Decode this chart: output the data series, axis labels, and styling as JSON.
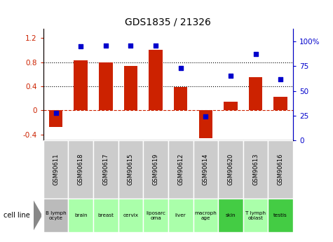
{
  "title": "GDS1835 / 21326",
  "gsm_labels": [
    "GSM90611",
    "GSM90618",
    "GSM90617",
    "GSM90615",
    "GSM90619",
    "GSM90612",
    "GSM90614",
    "GSM90620",
    "GSM90613",
    "GSM90616"
  ],
  "cell_labels": [
    "B lymph\nocyte",
    "brain",
    "breast",
    "cervix",
    "liposarc\noma",
    "liver",
    "macroph\nage",
    "skin",
    "T lymph\noblast",
    "testis"
  ],
  "cell_bg_colors": [
    "#bbbbbb",
    "#aaffaa",
    "#aaffaa",
    "#aaffaa",
    "#aaffaa",
    "#aaffaa",
    "#aaffaa",
    "#44cc44",
    "#aaffaa",
    "#44cc44"
  ],
  "log2_ratio": [
    -0.28,
    0.83,
    0.79,
    0.74,
    1.0,
    0.39,
    -0.46,
    0.14,
    0.55,
    0.22
  ],
  "percentile_rank": [
    28,
    95,
    96,
    96,
    96,
    73,
    24,
    65,
    87,
    62
  ],
  "bar_color": "#cc2200",
  "dot_color": "#0000cc",
  "left_ylim": [
    -0.5,
    1.35
  ],
  "right_ylim": [
    0,
    112.5
  ],
  "left_yticks": [
    -0.4,
    0.0,
    0.4,
    0.8,
    1.2
  ],
  "right_yticks": [
    0,
    25,
    50,
    75,
    100
  ],
  "right_yticklabels": [
    "0",
    "25",
    "50",
    "75",
    "100%"
  ],
  "hlines": [
    0.4,
    0.8
  ],
  "zero_line": 0.0,
  "zero_line_color": "#cc2200",
  "gsm_bg_color": "#cccccc"
}
